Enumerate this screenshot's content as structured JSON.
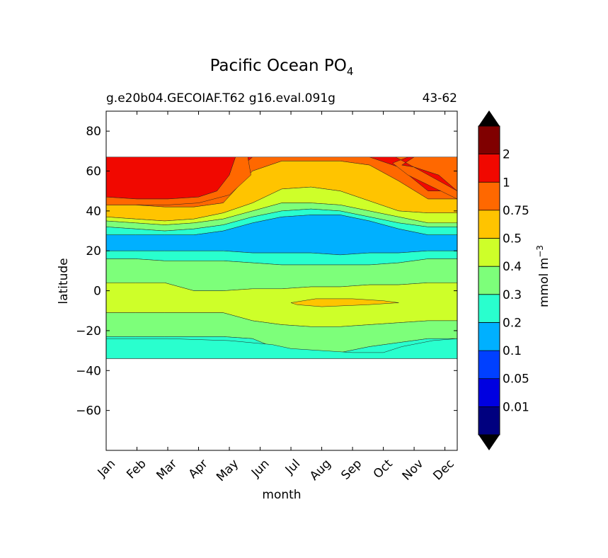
{
  "chart_data": {
    "type": "contourf",
    "title": "Pacific Ocean PO",
    "title_subscript": "4",
    "subtitle_left": "g.e20b04.GECOIAF.T62 g16.eval.091g",
    "subtitle_right": "43-62",
    "xlabel": "month",
    "ylabel": "latitude",
    "x_categories": [
      "Jan",
      "Feb",
      "Mar",
      "Apr",
      "May",
      "Jun",
      "Jul",
      "Aug",
      "Sep",
      "Oct",
      "Nov",
      "Dec"
    ],
    "xlim": [
      1,
      12.4
    ],
    "ylim": [
      -80,
      90
    ],
    "y_ticks": [
      80,
      60,
      40,
      20,
      0,
      -20,
      -40,
      -60
    ],
    "y_tick_labels": [
      "80",
      "60",
      "40",
      "20",
      "0",
      "−20",
      "−40",
      "−60"
    ],
    "data_lat_range": [
      -34,
      67
    ],
    "colorbar": {
      "label": "mmol m",
      "label_superscript": "−3",
      "levels": [
        "0.01",
        "0.05",
        "0.1",
        "0.2",
        "0.3",
        "0.4",
        "0.5",
        "0.75",
        "1",
        "2"
      ],
      "colors": [
        "#00007f",
        "#0000e0",
        "#0040ff",
        "#00b0ff",
        "#29ffce",
        "#7dff7a",
        "#ceff29",
        "#ffc400",
        "#ff6800",
        "#f10800",
        "#800000"
      ],
      "extend": "both"
    },
    "regions": [
      {
        "name": "red-band-north-early",
        "level_index": 9,
        "points": [
          [
            1,
            67
          ],
          [
            5.2,
            67
          ],
          [
            5.0,
            58
          ],
          [
            4.6,
            50
          ],
          [
            4,
            47
          ],
          [
            3,
            46
          ],
          [
            2,
            46
          ],
          [
            1,
            47
          ]
        ]
      },
      {
        "name": "red-band-north-late",
        "level_index": 9,
        "points": [
          [
            12.4,
            67
          ],
          [
            11,
            67
          ],
          [
            10.6,
            63
          ],
          [
            11,
            62
          ],
          [
            11.8,
            58
          ],
          [
            12.4,
            50
          ]
        ]
      },
      {
        "name": "orange-band-north",
        "level_index": 8,
        "points": [
          [
            1,
            47
          ],
          [
            2,
            46
          ],
          [
            3,
            46
          ],
          [
            4,
            47
          ],
          [
            4.6,
            50
          ],
          [
            5.0,
            58
          ],
          [
            5.2,
            67
          ],
          [
            5.6,
            67
          ],
          [
            5.7,
            58
          ],
          [
            5.0,
            48
          ],
          [
            4,
            44
          ],
          [
            3,
            43
          ],
          [
            2,
            43
          ],
          [
            1,
            43
          ],
          [
            1,
            47
          ]
        ]
      },
      {
        "name": "orange-band-north-late",
        "level_index": 8,
        "points": [
          [
            10.4,
            67
          ],
          [
            12.4,
            67
          ],
          [
            12.4,
            50
          ],
          [
            11.8,
            58
          ],
          [
            11,
            62
          ],
          [
            10.6,
            63
          ],
          [
            11,
            67
          ],
          [
            10.8,
            67
          ],
          [
            10.3,
            64
          ],
          [
            10.8,
            58
          ],
          [
            12.4,
            46
          ],
          [
            12.4,
            50
          ]
        ]
      },
      {
        "name": "south-lowbound",
        "level_index": 4,
        "points": [
          [
            1,
            -24
          ],
          [
            3,
            -24
          ],
          [
            5,
            -25
          ],
          [
            6.4,
            -27
          ],
          [
            7,
            -29
          ],
          [
            8,
            -30
          ],
          [
            9,
            -31
          ],
          [
            10,
            -31
          ],
          [
            10.6,
            -28
          ],
          [
            11.6,
            -25
          ],
          [
            12.4,
            -24
          ],
          [
            12.4,
            -34
          ],
          [
            1,
            -34
          ]
        ]
      },
      {
        "name": "equatorial-pocket",
        "level_index": 7,
        "points": [
          [
            7,
            -6
          ],
          [
            7.8,
            -4
          ],
          [
            9,
            -4
          ],
          [
            10,
            -5
          ],
          [
            10.5,
            -6
          ],
          [
            9.5,
            -7
          ],
          [
            8,
            -8
          ],
          [
            7.2,
            -7
          ]
        ]
      }
    ],
    "bands": [
      {
        "level_index": 9,
        "boundary_lo": [
          47,
          46,
          46,
          47,
          54,
          67,
          67,
          67,
          67,
          67,
          62,
          50,
          50
        ]
      },
      {
        "level_index": 8,
        "boundary_lo": [
          43,
          43,
          42,
          42,
          44,
          60,
          65,
          65,
          65,
          63,
          55,
          46,
          46
        ]
      },
      {
        "level_index": 7,
        "boundary_lo": [
          37,
          36,
          35,
          36,
          39,
          44,
          51,
          52,
          50,
          45,
          40,
          39,
          39
        ]
      },
      {
        "level_index": 6,
        "boundary_lo": [
          35,
          34,
          33,
          34,
          36,
          40,
          44,
          44,
          43,
          40,
          37,
          34,
          34
        ]
      },
      {
        "level_index": 5,
        "boundary_lo": [
          32,
          31,
          30,
          31,
          33,
          37,
          40,
          41,
          40,
          37,
          34,
          32,
          32
        ]
      },
      {
        "level_index": 4,
        "boundary_lo": [
          28,
          28,
          28,
          28,
          30,
          34,
          37,
          38,
          38,
          35,
          31,
          28,
          28
        ]
      },
      {
        "level_index": 3,
        "boundary_lo": [
          20,
          20,
          20,
          20,
          20,
          19,
          19,
          19,
          18,
          19,
          19,
          20,
          20
        ]
      },
      {
        "level_index": 4,
        "boundary_lo": [
          16,
          16,
          15,
          15,
          15,
          14,
          13,
          13,
          13,
          13,
          14,
          16,
          16
        ]
      },
      {
        "level_index": 5,
        "boundary_lo": [
          4,
          4,
          4,
          0,
          0,
          1,
          1,
          2,
          2,
          3,
          3,
          4,
          4
        ]
      },
      {
        "level_index": 6,
        "boundary_lo": [
          -11,
          -11,
          -11,
          -11,
          -11,
          -15,
          -17,
          -18,
          -18,
          -17,
          -16,
          -15,
          -15
        ]
      },
      {
        "level_index": 5,
        "boundary_lo": [
          -23,
          -23,
          -23,
          -23,
          -23,
          -24,
          -30,
          -31,
          -31,
          -28,
          -26,
          -24,
          -24
        ]
      },
      {
        "level_index": 4,
        "boundary_lo": [
          -34,
          -34,
          -34,
          -34,
          -34,
          -34,
          -34,
          -34,
          -34,
          -34,
          -34,
          -34,
          -34
        ]
      }
    ]
  }
}
